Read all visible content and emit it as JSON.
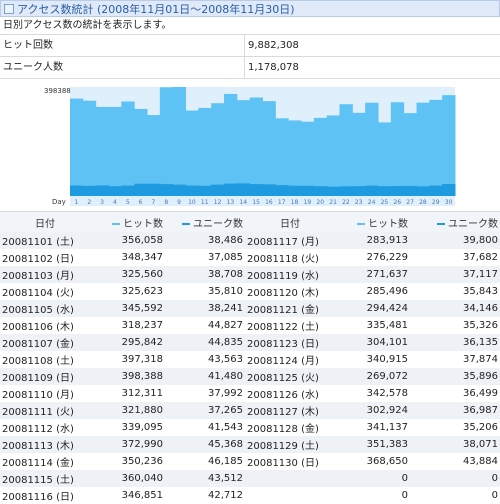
{
  "title": "アクセス数統計 (2008年11月01日～2008年11月30日)",
  "description": "日別アクセス数の統計を表示します。",
  "stats": [
    {
      "label": "ヒット回数",
      "value": "9,882,308"
    },
    {
      "label": "ユニーク人数",
      "value": "1,178,078"
    }
  ],
  "colors": {
    "hits": "#5ec3f4",
    "uniques": "#1e9be0",
    "chart_bg": "#dfeffc"
  },
  "chart_data": {
    "type": "area",
    "ymax_label": "398388",
    "xlabel": "Day",
    "ylim": [
      0,
      398388
    ],
    "x": [
      1,
      2,
      3,
      4,
      5,
      6,
      7,
      8,
      9,
      10,
      11,
      12,
      13,
      14,
      15,
      16,
      17,
      18,
      19,
      20,
      21,
      22,
      23,
      24,
      25,
      26,
      27,
      28,
      29,
      30
    ],
    "series": [
      {
        "name": "ヒット数",
        "values": [
          356058,
          348347,
          325560,
          325623,
          345592,
          318237,
          295842,
          397318,
          398388,
          312311,
          321880,
          339095,
          372990,
          350236,
          360040,
          346851,
          283913,
          276229,
          271637,
          285496,
          294424,
          335481,
          304101,
          340915,
          269072,
          342578,
          302924,
          341137,
          351383,
          368650
        ]
      },
      {
        "name": "ユニーク数",
        "values": [
          38486,
          37085,
          38708,
          35810,
          38241,
          44827,
          44835,
          43563,
          41480,
          37992,
          37265,
          41543,
          45368,
          46185,
          43512,
          42712,
          39800,
          37682,
          37117,
          35843,
          34146,
          35326,
          36135,
          37874,
          35896,
          36499,
          36987,
          35206,
          38071,
          43884
        ]
      }
    ]
  },
  "table": {
    "headers": {
      "date": "日付",
      "hits": "ヒット数",
      "uniques": "ユニーク数"
    },
    "left": [
      [
        "20081101 (土)",
        "356,058",
        "38,486"
      ],
      [
        "20081102 (日)",
        "348,347",
        "37,085"
      ],
      [
        "20081103 (月)",
        "325,560",
        "38,708"
      ],
      [
        "20081104 (火)",
        "325,623",
        "35,810"
      ],
      [
        "20081105 (水)",
        "345,592",
        "38,241"
      ],
      [
        "20081106 (木)",
        "318,237",
        "44,827"
      ],
      [
        "20081107 (金)",
        "295,842",
        "44,835"
      ],
      [
        "20081108 (土)",
        "397,318",
        "43,563"
      ],
      [
        "20081109 (日)",
        "398,388",
        "41,480"
      ],
      [
        "20081110 (月)",
        "312,311",
        "37,992"
      ],
      [
        "20081111 (火)",
        "321,880",
        "37,265"
      ],
      [
        "20081112 (水)",
        "339,095",
        "41,543"
      ],
      [
        "20081113 (木)",
        "372,990",
        "45,368"
      ],
      [
        "20081114 (金)",
        "350,236",
        "46,185"
      ],
      [
        "20081115 (土)",
        "360,040",
        "43,512"
      ],
      [
        "20081116 (日)",
        "346,851",
        "42,712"
      ]
    ],
    "right": [
      [
        "20081117 (月)",
        "283,913",
        "39,800"
      ],
      [
        "20081118 (火)",
        "276,229",
        "37,682"
      ],
      [
        "20081119 (水)",
        "271,637",
        "37,117"
      ],
      [
        "20081120 (木)",
        "285,496",
        "35,843"
      ],
      [
        "20081121 (金)",
        "294,424",
        "34,146"
      ],
      [
        "20081122 (土)",
        "335,481",
        "35,326"
      ],
      [
        "20081123 (日)",
        "304,101",
        "36,135"
      ],
      [
        "20081124 (月)",
        "340,915",
        "37,874"
      ],
      [
        "20081125 (火)",
        "269,072",
        "35,896"
      ],
      [
        "20081126 (水)",
        "342,578",
        "36,499"
      ],
      [
        "20081127 (木)",
        "302,924",
        "36,987"
      ],
      [
        "20081128 (金)",
        "341,137",
        "35,206"
      ],
      [
        "20081129 (土)",
        "351,383",
        "38,071"
      ],
      [
        "20081130 (日)",
        "368,650",
        "43,884"
      ],
      [
        "",
        "0",
        "0"
      ],
      [
        "",
        "0",
        "0"
      ]
    ]
  }
}
